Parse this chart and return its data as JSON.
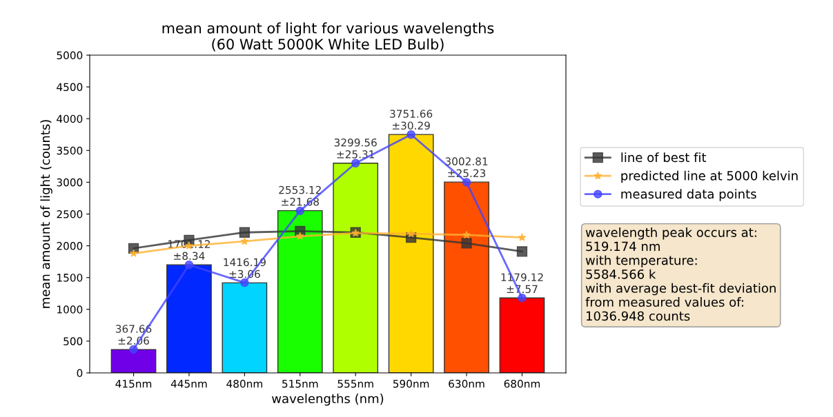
{
  "chart_data": {
    "type": "bar",
    "title": "mean amount of light for various wavelengths\n(60 Watt 5000K White LED Bulb)",
    "xlabel": "wavelengths (nm)",
    "ylabel": "mean amount of light (counts)",
    "categories": [
      "415nm",
      "445nm",
      "480nm",
      "515nm",
      "555nm",
      "590nm",
      "630nm",
      "680nm"
    ],
    "ylim": [
      0,
      5000
    ],
    "yticks": [
      0,
      500,
      1000,
      1500,
      2000,
      2500,
      3000,
      3500,
      4000,
      4500,
      5000
    ],
    "grid": false,
    "legend": "right",
    "series": [
      {
        "colors": [
          "#7000e8",
          "#0028ff",
          "#00d4ff",
          "#1aff00",
          "#b0ff00",
          "#ffd800",
          "#ff5000",
          "#ff0000"
        ],
        "values": [
          367.66,
          1701.12,
          1416.19,
          2553.12,
          3299.56,
          3751.66,
          3002.81,
          1179.12
        ],
        "value_labels": [
          "367.66\n±2.06",
          "1701.12\n±8.34",
          "1416.19\n±3.06",
          "2553.12\n±21.68",
          "3299.56\n±25.31",
          "3751.66\n±30.29",
          "3002.81\n±25.23",
          "1179.12\n±7.57"
        ]
      },
      {
        "type": "line",
        "name": "line of best fit",
        "color": "#333333",
        "marker": "square",
        "values": [
          1960,
          2090,
          2210,
          2230,
          2210,
          2130,
          2040,
          1910
        ]
      },
      {
        "type": "line",
        "name": "predicted line at 5000 kelvin",
        "color": "#ffb030",
        "marker": "star",
        "values": [
          1880,
          2000,
          2070,
          2150,
          2200,
          2190,
          2170,
          2130
        ]
      },
      {
        "type": "line",
        "name": "measured data points",
        "color": "#4444ff",
        "marker": "circle",
        "values": [
          370,
          1700,
          1420,
          2550,
          3300,
          3750,
          3000,
          1180
        ]
      }
    ],
    "annotations": [
      "wavelength peak occurs at:\n519.174 nm\nwith temperature:\n5584.566 k\nwith average best-fit deviation\nfrom measured values of:\n1036.948 counts"
    ]
  }
}
